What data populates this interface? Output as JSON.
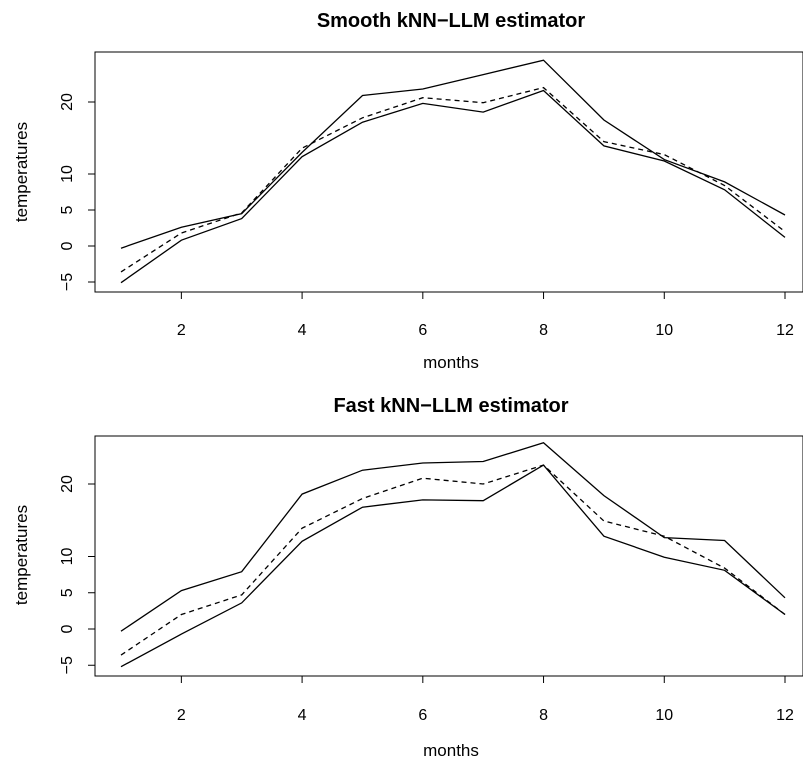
{
  "chart_data": [
    {
      "type": "line",
      "title": "Smooth kNN−LLM estimator",
      "xlabel": "months",
      "ylabel": "temperatures",
      "xlim": [
        1,
        12
      ],
      "ylim": [
        -5,
        25.5
      ],
      "xticks": [
        2,
        4,
        6,
        8,
        10,
        12
      ],
      "yticks": [
        -5,
        0,
        5,
        10,
        20
      ],
      "grid": false,
      "x": [
        1,
        2,
        3,
        4,
        5,
        6,
        7,
        8,
        9,
        10,
        11,
        12
      ],
      "series": [
        {
          "style": "solid",
          "values": [
            -0.3,
            2.6,
            4.5,
            13.0,
            20.9,
            21.8,
            23.8,
            25.8,
            17.5,
            12.0,
            8.9,
            4.3
          ]
        },
        {
          "style": "dashed",
          "values": [
            -3.6,
            1.8,
            4.6,
            13.6,
            17.8,
            20.6,
            19.9,
            22.0,
            14.5,
            12.7,
            8.4,
            2.0
          ]
        },
        {
          "style": "solid",
          "values": [
            -5.1,
            0.8,
            3.8,
            12.4,
            17.2,
            19.8,
            18.6,
            21.6,
            13.9,
            11.8,
            7.8,
            1.2
          ]
        }
      ]
    },
    {
      "type": "line",
      "title": "Fast  kNN−LLM estimator",
      "xlabel": "months",
      "ylabel": "temperatures",
      "xlim": [
        1,
        12
      ],
      "ylim": [
        -5,
        25.5
      ],
      "xticks": [
        2,
        4,
        6,
        8,
        10,
        12
      ],
      "yticks": [
        -5,
        0,
        5,
        10,
        20
      ],
      "grid": false,
      "x": [
        1,
        2,
        3,
        4,
        5,
        6,
        7,
        8,
        9,
        10,
        11,
        12
      ],
      "series": [
        {
          "style": "solid",
          "values": [
            -0.3,
            5.3,
            7.9,
            18.6,
            21.9,
            22.9,
            23.1,
            25.7,
            18.4,
            12.6,
            12.2,
            4.3
          ]
        },
        {
          "style": "dashed",
          "values": [
            -3.6,
            2.0,
            4.7,
            13.9,
            18.0,
            20.8,
            20.0,
            22.6,
            14.9,
            12.8,
            8.4,
            2.0
          ]
        },
        {
          "style": "solid",
          "values": [
            -5.2,
            -0.7,
            3.6,
            12.1,
            16.8,
            17.8,
            17.7,
            22.6,
            12.8,
            9.9,
            8.1,
            2.0
          ]
        }
      ]
    }
  ]
}
